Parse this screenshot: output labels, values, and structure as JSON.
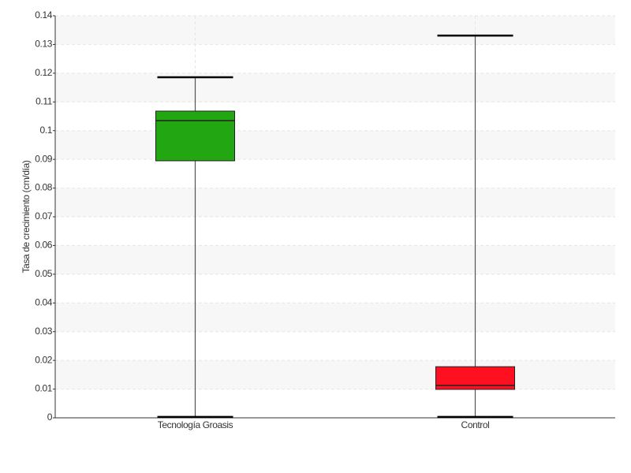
{
  "chart_data": {
    "type": "box",
    "y_label": "Tasa de crecimiento (cm/día)",
    "categories": [
      "Tecnología Groasis",
      "Control"
    ],
    "boxes": [
      {
        "min": 0.0003,
        "q1": 0.0895,
        "median": 0.1035,
        "q3": 0.1068,
        "max": 0.1186,
        "color": "#22a612"
      },
      {
        "min": 0.0003,
        "q1": 0.0099,
        "median": 0.0113,
        "q3": 0.0178,
        "max": 0.1331,
        "color": "#ff1020"
      }
    ],
    "ylim": [
      0,
      0.14
    ],
    "yticks": [
      0,
      0.01,
      0.02,
      0.03,
      0.04,
      0.05,
      0.06,
      0.07,
      0.08,
      0.09,
      0.1,
      0.11,
      0.12,
      0.13,
      0.14
    ],
    "grid": true
  }
}
